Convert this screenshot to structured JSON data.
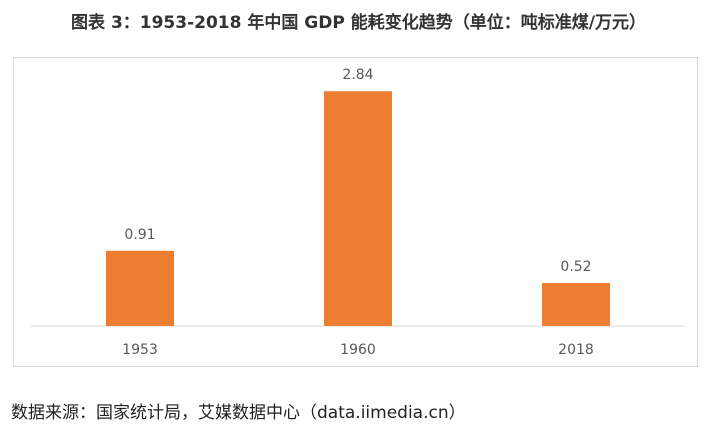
{
  "chart_data": {
    "type": "bar",
    "title": "图表 3：1953-2018 年中国 GDP 能耗变化趋势（单位：吨标准煤/万元）",
    "categories": [
      "1953",
      "1960",
      "2018"
    ],
    "values": [
      0.91,
      2.84,
      0.52
    ],
    "data_labels": [
      "0.91",
      "2.84",
      "0.52"
    ],
    "xlabel": "",
    "ylabel": "",
    "ylim": [
      0,
      3.0
    ],
    "grid": false,
    "bar_color": "#ED7D31"
  },
  "source_text": "数据来源：国家统计局，艾媒数据中心（data.iimedia.cn）",
  "colors": {
    "bar": "#ED7D31",
    "axis": "#d9d9d9",
    "label": "#595959"
  }
}
